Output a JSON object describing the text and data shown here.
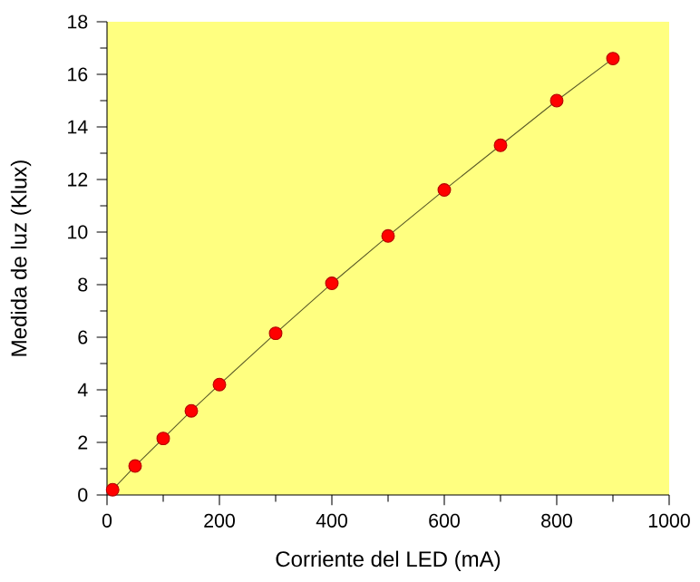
{
  "chart_data": {
    "type": "line",
    "xlabel": "Corriente del LED (mA)",
    "ylabel": "Medida de luz (Klux)",
    "x": [
      10,
      50,
      100,
      150,
      200,
      300,
      400,
      500,
      600,
      700,
      800,
      900
    ],
    "series": [
      {
        "color": "#ff0000",
        "values": [
          0.2,
          1.1,
          2.15,
          3.2,
          4.2,
          6.15,
          8.05,
          9.85,
          11.6,
          13.3,
          15.0,
          16.6
        ]
      }
    ],
    "xlim": [
      0,
      1000
    ],
    "ylim": [
      0,
      18
    ],
    "xticks": [
      0,
      200,
      400,
      600,
      800,
      1000
    ],
    "yticks": [
      0,
      2,
      4,
      6,
      8,
      10,
      12,
      14,
      16,
      18
    ],
    "marker": "circle",
    "line_style": "solid",
    "grid": false
  }
}
